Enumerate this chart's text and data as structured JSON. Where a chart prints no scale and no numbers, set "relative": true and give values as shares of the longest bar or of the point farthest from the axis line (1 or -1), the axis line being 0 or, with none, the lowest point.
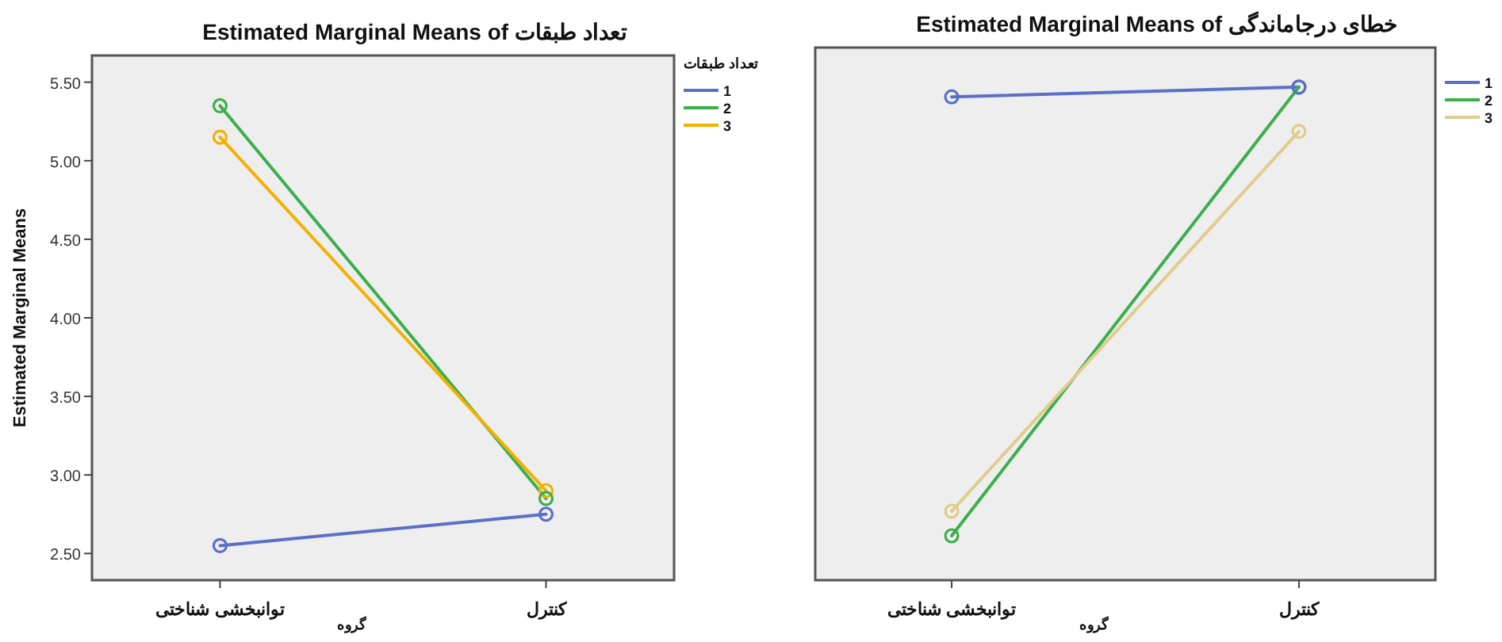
{
  "chart_data": [
    {
      "type": "line",
      "title": "Estimated Marginal Means of تعداد طبقات",
      "xlabel": "گروه",
      "ylabel": "Estimated Marginal Means",
      "legend_title": "تعداد طبقات",
      "categories": [
        "توانبخشی شناختی",
        "کنترل"
      ],
      "series": [
        {
          "name": "1",
          "color": "#5b6fc8",
          "values": [
            2.55,
            2.75
          ]
        },
        {
          "name": "2",
          "color": "#3cae4c",
          "values": [
            5.35,
            2.85
          ]
        },
        {
          "name": "3",
          "color": "#f2b100",
          "values": [
            5.15,
            2.9
          ]
        }
      ],
      "ylim": [
        2.33,
        5.67
      ],
      "yticks": [
        {
          "value": 2.5,
          "label": "2.50"
        },
        {
          "value": 3.0,
          "label": "3.00"
        },
        {
          "value": 3.5,
          "label": "3.50"
        },
        {
          "value": 4.0,
          "label": "4.00"
        },
        {
          "value": 4.5,
          "label": "4.50"
        },
        {
          "value": 5.0,
          "label": "5.00"
        },
        {
          "value": 5.5,
          "label": "5.50"
        }
      ],
      "marker": "circle",
      "legend": "right"
    },
    {
      "type": "line",
      "title": "Estimated Marginal Means of خطای درجاماندگی",
      "xlabel": "گروه",
      "categories": [
        "توانبخشی شناختی",
        "کنترل"
      ],
      "relative": true,
      "tick_labels": "x",
      "series": [
        {
          "name": "1",
          "color": "#5b6fc8",
          "values": [
            0.98,
            1.0
          ]
        },
        {
          "name": "2",
          "color": "#3cae4c",
          "values": [
            0.09,
            1.0
          ]
        },
        {
          "name": "3",
          "color": "#e0cc8c",
          "values": [
            0.14,
            0.91
          ]
        }
      ],
      "marker": "circle",
      "legend": "right"
    }
  ]
}
